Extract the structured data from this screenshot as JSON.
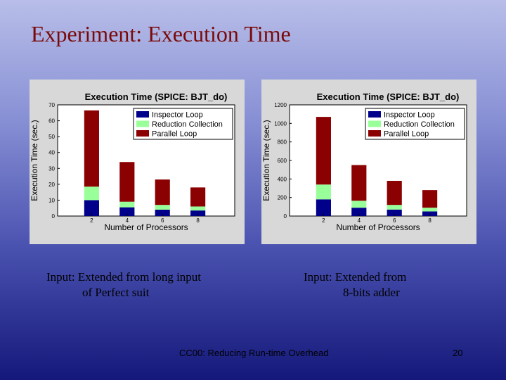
{
  "slide": {
    "title": "Experiment: Execution Time",
    "caption_left_line1": "Input: Extended from long input",
    "caption_left_line2": "of Perfect suit",
    "caption_right_line1": "Input: Extended from",
    "caption_right_line2": "8-bits adder",
    "footer_center": "CC00: Reducing Run-time Overhead",
    "page_number": "20"
  },
  "chart_data": [
    {
      "type": "bar",
      "stacked": true,
      "title": "Execution Time (SPICE: BJT_do)",
      "xlabel": "Number of Processors",
      "ylabel": "Execution Time (sec.)",
      "categories": [
        "2",
        "4",
        "6",
        "8"
      ],
      "ylim": [
        0,
        70
      ],
      "yticks": [
        0,
        10,
        20,
        30,
        40,
        50,
        60,
        70
      ],
      "grid": false,
      "legend": "top-right",
      "series": [
        {
          "name": "Inspector Loop",
          "color": "#00008b",
          "values": [
            10,
            5.5,
            4,
            3.5
          ]
        },
        {
          "name": "Reduction Collection",
          "color": "#99ff99",
          "values": [
            8.5,
            3.5,
            3,
            2.5
          ]
        },
        {
          "name": "Parallel Loop",
          "color": "#8b0000",
          "values": [
            48,
            25,
            16,
            12
          ]
        }
      ]
    },
    {
      "type": "bar",
      "stacked": true,
      "title": "Execution Time (SPICE: BJT_do)",
      "xlabel": "Number of Processors",
      "ylabel": "Execution Time (sec.)",
      "categories": [
        "2",
        "4",
        "6",
        "8"
      ],
      "ylim": [
        0,
        1200
      ],
      "yticks": [
        0,
        200,
        400,
        600,
        800,
        1000,
        1200
      ],
      "grid": false,
      "legend": "top-right",
      "series": [
        {
          "name": "Inspector Loop",
          "color": "#00008b",
          "values": [
            180,
            90,
            70,
            50
          ]
        },
        {
          "name": "Reduction Collection",
          "color": "#99ff99",
          "values": [
            160,
            75,
            50,
            40
          ]
        },
        {
          "name": "Parallel Loop",
          "color": "#8b0000",
          "values": [
            730,
            385,
            260,
            190
          ]
        }
      ]
    }
  ]
}
